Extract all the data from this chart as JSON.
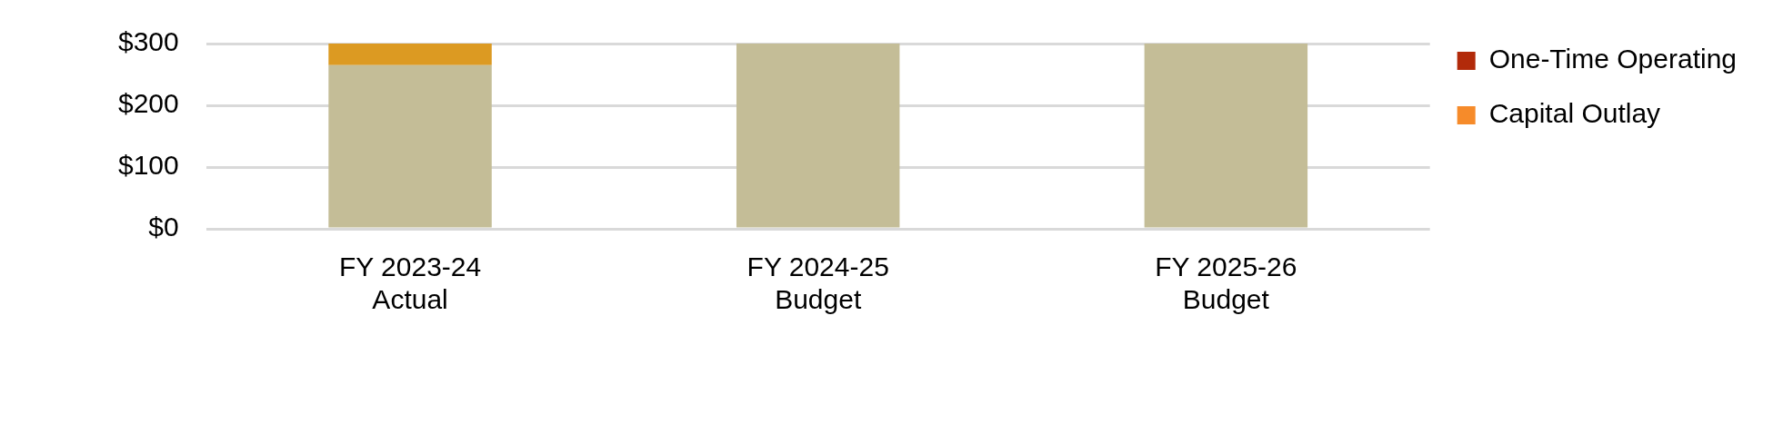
{
  "chart_data": {
    "type": "bar",
    "stacked": true,
    "categories": [
      "FY 2023-24\nActual",
      "FY 2024-25\nBudget",
      "FY 2025-26\nBudget"
    ],
    "series": [
      {
        "color": "#c4bd97",
        "values": [
          265,
          300,
          300
        ]
      },
      {
        "color": "#dc9a22",
        "values": [
          35,
          0,
          0
        ]
      },
      {
        "name": "One-Time Operating",
        "color": "#b22a0a",
        "values": [
          0,
          0,
          0
        ]
      },
      {
        "name": "Capital Outlay",
        "color": "#f68b2a",
        "values": [
          0,
          0,
          0
        ]
      }
    ],
    "ylim": [
      0,
      300
    ],
    "yticks": [
      {
        "value": 0,
        "label": "$0"
      },
      {
        "value": 100,
        "label": "$100"
      },
      {
        "value": 200,
        "label": "$200"
      },
      {
        "value": 300,
        "label": "$300"
      }
    ],
    "grid": "y",
    "legend": "right"
  }
}
